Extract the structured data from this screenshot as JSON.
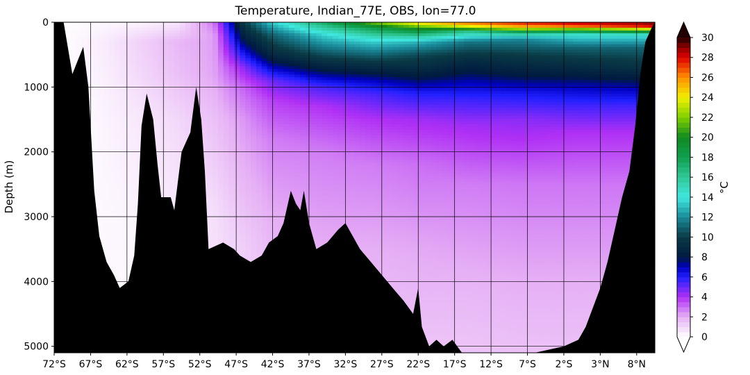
{
  "chart_data": {
    "type": "heatmap",
    "title": "Temperature, Indian_77E, OBS, lon=77.0",
    "ylabel": "Depth (m)",
    "xlabel": "",
    "y_axis_inverted": true,
    "xlim": [
      -72,
      10.5
    ],
    "ylim": [
      5100,
      0
    ],
    "x_ticks": [
      {
        "value": -72,
        "label": "72°S"
      },
      {
        "value": -67,
        "label": "67°S"
      },
      {
        "value": -62,
        "label": "62°S"
      },
      {
        "value": -57,
        "label": "57°S"
      },
      {
        "value": -52,
        "label": "52°S"
      },
      {
        "value": -47,
        "label": "47°S"
      },
      {
        "value": -42,
        "label": "42°S"
      },
      {
        "value": -37,
        "label": "37°S"
      },
      {
        "value": -32,
        "label": "32°S"
      },
      {
        "value": -27,
        "label": "27°S"
      },
      {
        "value": -22,
        "label": "22°S"
      },
      {
        "value": -17,
        "label": "17°S"
      },
      {
        "value": -12,
        "label": "12°S"
      },
      {
        "value": -7,
        "label": "7°S"
      },
      {
        "value": -2,
        "label": "2°S"
      },
      {
        "value": 3,
        "label": "3°N"
      },
      {
        "value": 8,
        "label": "8°N"
      }
    ],
    "y_ticks": [
      {
        "value": 0,
        "label": "0"
      },
      {
        "value": 1000,
        "label": "1000"
      },
      {
        "value": 2000,
        "label": "2000"
      },
      {
        "value": 3000,
        "label": "3000"
      },
      {
        "value": 4000,
        "label": "4000"
      },
      {
        "value": 5000,
        "label": "5000"
      }
    ],
    "grid": true,
    "colorbar": {
      "label": "°C",
      "min": 0,
      "max": 30,
      "extend": "both",
      "ticks": [
        {
          "value": 0,
          "label": "0"
        },
        {
          "value": 2,
          "label": "2"
        },
        {
          "value": 4,
          "label": "4"
        },
        {
          "value": 6,
          "label": "6"
        },
        {
          "value": 8,
          "label": "8"
        },
        {
          "value": 10,
          "label": "10"
        },
        {
          "value": 12,
          "label": "12"
        },
        {
          "value": 14,
          "label": "14"
        },
        {
          "value": 16,
          "label": "16"
        },
        {
          "value": 18,
          "label": "18"
        },
        {
          "value": 20,
          "label": "20"
        },
        {
          "value": 22,
          "label": "22"
        },
        {
          "value": 24,
          "label": "24"
        },
        {
          "value": 26,
          "label": "26"
        },
        {
          "value": 28,
          "label": "28"
        },
        {
          "value": 30,
          "label": "30"
        }
      ],
      "stops": [
        {
          "value": 0,
          "color": "#ffffff"
        },
        {
          "value": 2,
          "color": "#e6b0f5"
        },
        {
          "value": 4,
          "color": "#b030f5"
        },
        {
          "value": 6,
          "color": "#2020ff"
        },
        {
          "value": 7,
          "color": "#0000c0"
        },
        {
          "value": 8,
          "color": "#001a40"
        },
        {
          "value": 10,
          "color": "#0a3a45"
        },
        {
          "value": 12,
          "color": "#1a8a9a"
        },
        {
          "value": 14,
          "color": "#40e8e0"
        },
        {
          "value": 16,
          "color": "#30c898"
        },
        {
          "value": 18,
          "color": "#10a050"
        },
        {
          "value": 20,
          "color": "#108a20"
        },
        {
          "value": 22,
          "color": "#80d000"
        },
        {
          "value": 24,
          "color": "#f0f000"
        },
        {
          "value": 26,
          "color": "#ff9000"
        },
        {
          "value": 28,
          "color": "#e00000"
        },
        {
          "value": 29,
          "color": "#900000"
        },
        {
          "value": 30,
          "color": "#200000"
        }
      ]
    },
    "profile": [
      {
        "lat": -72,
        "t": [
          [
            0,
            0.0
          ]
        ]
      },
      {
        "lat": -65,
        "t": [
          [
            0,
            0.2
          ],
          [
            300,
            0.5
          ],
          [
            800,
            0.4
          ],
          [
            1500,
            0.3
          ],
          [
            3000,
            0.2
          ]
        ]
      },
      {
        "lat": -60,
        "t": [
          [
            0,
            0.3
          ],
          [
            300,
            1.2
          ],
          [
            800,
            1.0
          ],
          [
            1500,
            0.6
          ],
          [
            3000,
            0.3
          ],
          [
            4000,
            0.1
          ]
        ]
      },
      {
        "lat": -55,
        "t": [
          [
            0,
            0.6
          ],
          [
            300,
            1.8
          ],
          [
            800,
            1.6
          ],
          [
            1500,
            1.0
          ],
          [
            3000,
            0.5
          ]
        ]
      },
      {
        "lat": -50,
        "t": [
          [
            0,
            3.0
          ],
          [
            200,
            2.3
          ],
          [
            800,
            2.2
          ],
          [
            1500,
            1.6
          ],
          [
            3000,
            0.8
          ]
        ]
      },
      {
        "lat": -46,
        "t": [
          [
            0,
            10.0
          ],
          [
            300,
            7.8
          ],
          [
            700,
            4.5
          ],
          [
            1000,
            3.2
          ],
          [
            1500,
            2.4
          ],
          [
            2500,
            1.8
          ],
          [
            3500,
            1.2
          ]
        ]
      },
      {
        "lat": -42,
        "t": [
          [
            0,
            13.5
          ],
          [
            200,
            11.0
          ],
          [
            500,
            9.0
          ],
          [
            700,
            7.0
          ],
          [
            900,
            5.0
          ],
          [
            1200,
            3.8
          ],
          [
            1800,
            2.8
          ],
          [
            3000,
            2.0
          ],
          [
            4500,
            1.4
          ]
        ]
      },
      {
        "lat": -35,
        "t": [
          [
            0,
            17.5
          ],
          [
            200,
            13.5
          ],
          [
            500,
            10.5
          ],
          [
            800,
            7.5
          ],
          [
            1000,
            5.5
          ],
          [
            1300,
            4.0
          ],
          [
            2000,
            2.8
          ],
          [
            3500,
            2.0
          ],
          [
            4500,
            1.5
          ]
        ]
      },
      {
        "lat": -28,
        "t": [
          [
            0,
            22.0
          ],
          [
            100,
            18.0
          ],
          [
            300,
            13.5
          ],
          [
            600,
            10.0
          ],
          [
            900,
            7.0
          ],
          [
            1100,
            5.5
          ],
          [
            1500,
            4.0
          ],
          [
            2200,
            2.8
          ],
          [
            3500,
            2.0
          ],
          [
            5000,
            1.4
          ]
        ]
      },
      {
        "lat": -22,
        "t": [
          [
            0,
            25.0
          ],
          [
            100,
            20.0
          ],
          [
            300,
            13.0
          ],
          [
            500,
            10.5
          ],
          [
            800,
            8.5
          ],
          [
            1100,
            6.0
          ],
          [
            1500,
            4.2
          ],
          [
            2200,
            3.0
          ],
          [
            3500,
            2.1
          ],
          [
            5000,
            1.5
          ]
        ]
      },
      {
        "lat": -15,
        "t": [
          [
            0,
            27.0
          ],
          [
            80,
            23.0
          ],
          [
            150,
            16.0
          ],
          [
            300,
            11.5
          ],
          [
            600,
            9.0
          ],
          [
            900,
            7.2
          ],
          [
            1200,
            5.6
          ],
          [
            1600,
            4.2
          ],
          [
            2500,
            2.8
          ],
          [
            4000,
            1.9
          ],
          [
            5000,
            1.5
          ]
        ]
      },
      {
        "lat": -8,
        "t": [
          [
            0,
            28.0
          ],
          [
            80,
            25.0
          ],
          [
            150,
            18.0
          ],
          [
            250,
            12.0
          ],
          [
            500,
            10.0
          ],
          [
            800,
            8.2
          ],
          [
            1100,
            6.2
          ],
          [
            1500,
            4.5
          ],
          [
            2500,
            2.9
          ],
          [
            4000,
            2.0
          ],
          [
            5000,
            1.6
          ]
        ]
      },
      {
        "lat": 0,
        "t": [
          [
            0,
            28.5
          ],
          [
            60,
            27.0
          ],
          [
            120,
            20.0
          ],
          [
            200,
            14.0
          ],
          [
            400,
            11.0
          ],
          [
            700,
            9.0
          ],
          [
            1000,
            7.0
          ],
          [
            1300,
            5.5
          ],
          [
            1700,
            4.0
          ],
          [
            2500,
            2.9
          ],
          [
            4000,
            2.0
          ],
          [
            5000,
            1.6
          ]
        ]
      },
      {
        "lat": 9,
        "t": [
          [
            0,
            29.0
          ],
          [
            60,
            28.0
          ],
          [
            120,
            22.0
          ],
          [
            200,
            14.0
          ],
          [
            400,
            11.0
          ],
          [
            700,
            9.5
          ],
          [
            1000,
            7.2
          ],
          [
            1300,
            5.5
          ],
          [
            1700,
            4.0
          ],
          [
            2500,
            2.9
          ],
          [
            4000,
            2.0
          ],
          [
            5000,
            1.6
          ]
        ]
      },
      {
        "lat": 10.5,
        "t": [
          [
            0,
            29.5
          ],
          [
            60,
            28.5
          ],
          [
            120,
            22.0
          ],
          [
            200,
            14.0
          ],
          [
            400,
            11.0
          ],
          [
            700,
            9.5
          ],
          [
            1000,
            7.2
          ],
          [
            1300,
            5.5
          ],
          [
            1700,
            4.0
          ],
          [
            2500,
            2.9
          ],
          [
            4000,
            2.0
          ],
          [
            5000,
            1.6
          ]
        ]
      }
    ],
    "bathymetry": [
      [
        -72,
        0
      ],
      [
        -70.7,
        0
      ],
      [
        -69.5,
        800
      ],
      [
        -68.8,
        600
      ],
      [
        -68,
        380
      ],
      [
        -67.3,
        1000
      ],
      [
        -66.5,
        2600
      ],
      [
        -65.8,
        3300
      ],
      [
        -64.8,
        3700
      ],
      [
        -63.8,
        3900
      ],
      [
        -63,
        4100
      ],
      [
        -61.8,
        4000
      ],
      [
        -61,
        3600
      ],
      [
        -60.5,
        2800
      ],
      [
        -60,
        1600
      ],
      [
        -59.3,
        1100
      ],
      [
        -58.4,
        1500
      ],
      [
        -57.8,
        2200
      ],
      [
        -57.3,
        2700
      ],
      [
        -56,
        2700
      ],
      [
        -55.5,
        2900
      ],
      [
        -54.5,
        2000
      ],
      [
        -53.3,
        1700
      ],
      [
        -52.5,
        1000
      ],
      [
        -51.8,
        1500
      ],
      [
        -51.3,
        2300
      ],
      [
        -50.8,
        3500
      ],
      [
        -48.8,
        3400
      ],
      [
        -47.3,
        3500
      ],
      [
        -46.5,
        3600
      ],
      [
        -45,
        3700
      ],
      [
        -43.5,
        3600
      ],
      [
        -42.5,
        3400
      ],
      [
        -41.3,
        3300
      ],
      [
        -40.5,
        3100
      ],
      [
        -39.5,
        2600
      ],
      [
        -38.8,
        2800
      ],
      [
        -38.2,
        2900
      ],
      [
        -37.7,
        2600
      ],
      [
        -37,
        3100
      ],
      [
        -36,
        3500
      ],
      [
        -34.5,
        3400
      ],
      [
        -33,
        3200
      ],
      [
        -32,
        3100
      ],
      [
        -31,
        3300
      ],
      [
        -30,
        3500
      ],
      [
        -28.5,
        3700
      ],
      [
        -27,
        3900
      ],
      [
        -25.5,
        4100
      ],
      [
        -24,
        4300
      ],
      [
        -22.7,
        4500
      ],
      [
        -22,
        4100
      ],
      [
        -21.5,
        4700
      ],
      [
        -20.5,
        5000
      ],
      [
        -19.5,
        4900
      ],
      [
        -18.5,
        5000
      ],
      [
        -17.3,
        4900
      ],
      [
        -16,
        5100
      ],
      [
        -6,
        5100
      ],
      [
        -2,
        5000
      ],
      [
        0,
        4900
      ],
      [
        1,
        4700
      ],
      [
        2,
        4400
      ],
      [
        3,
        4100
      ],
      [
        4,
        3700
      ],
      [
        5,
        3200
      ],
      [
        6,
        2700
      ],
      [
        7,
        2300
      ],
      [
        7.8,
        1600
      ],
      [
        8.5,
        800
      ],
      [
        9.2,
        300
      ],
      [
        10,
        100
      ],
      [
        10.5,
        0
      ]
    ]
  }
}
